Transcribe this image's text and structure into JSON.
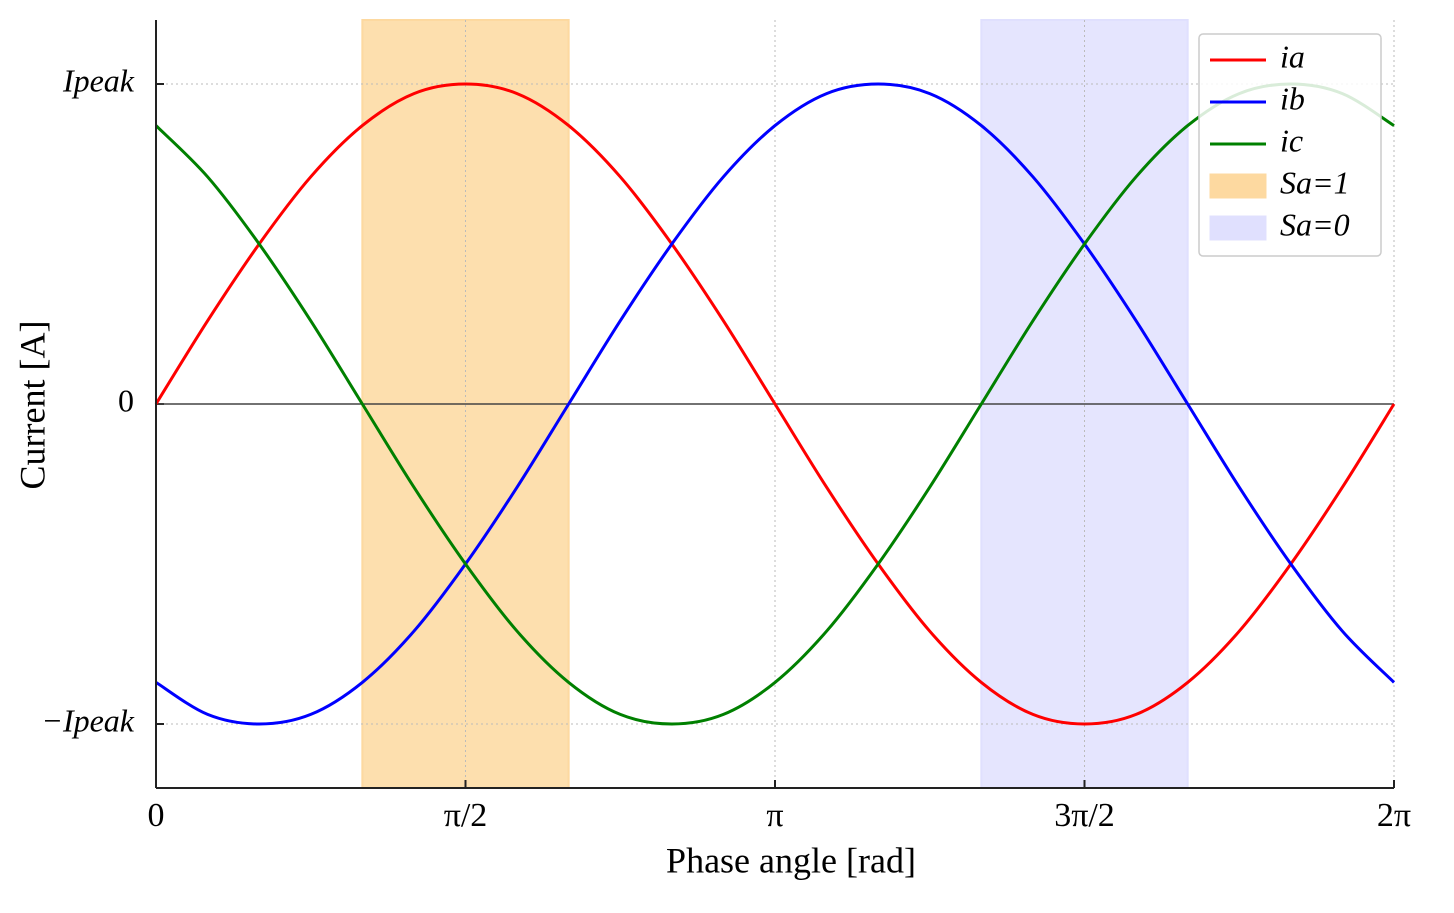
{
  "chart_data": {
    "type": "line",
    "x_label": "Phase angle [rad]",
    "y_label": "Current [A]",
    "x": [
      0,
      0.2618,
      0.5236,
      0.7854,
      1.0472,
      1.309,
      1.5708,
      1.8326,
      2.0944,
      2.3562,
      2.618,
      2.8798,
      3.1416,
      3.4034,
      3.6652,
      3.927,
      4.1888,
      4.4506,
      4.7124,
      4.9742,
      5.236,
      5.4978,
      5.7596,
      6.0214,
      6.2832
    ],
    "series": [
      {
        "name": "ia",
        "color": "#ff0000",
        "values": [
          0,
          0.26,
          0.5,
          0.71,
          0.87,
          0.97,
          1,
          0.97,
          0.87,
          0.71,
          0.5,
          0.26,
          0,
          -0.26,
          -0.5,
          -0.71,
          -0.87,
          -0.97,
          -1,
          -0.97,
          -0.87,
          -0.71,
          -0.5,
          -0.26,
          0
        ]
      },
      {
        "name": "ib",
        "color": "#0000ff",
        "values": [
          -0.87,
          -0.97,
          -1,
          -0.97,
          -0.87,
          -0.71,
          -0.5,
          -0.26,
          0,
          0.26,
          0.5,
          0.71,
          0.87,
          0.97,
          1,
          0.97,
          0.87,
          0.71,
          0.5,
          0.26,
          0,
          -0.26,
          -0.5,
          -0.71,
          -0.87
        ]
      },
      {
        "name": "ic",
        "color": "#008000",
        "values": [
          0.87,
          0.71,
          0.5,
          0.26,
          0,
          -0.26,
          -0.5,
          -0.71,
          -0.87,
          -0.97,
          -1,
          -0.97,
          -0.87,
          -0.71,
          -0.5,
          -0.26,
          0,
          0.26,
          0.5,
          0.71,
          0.87,
          0.97,
          1,
          0.97,
          0.87
        ]
      }
    ],
    "spans": [
      {
        "name": "Sa=1",
        "color": "#fdd9a0",
        "x": [
          1.0472,
          2.0944
        ]
      },
      {
        "name": "Sa=0",
        "color": "#e0e0fe",
        "x": [
          4.1888,
          5.236
        ]
      }
    ],
    "hline": 0,
    "xlim": [
      0,
      6.2832
    ],
    "ylim": [
      -1.2,
      1.2
    ],
    "xticks": [
      0,
      {
        "value": 1.5708,
        "label": "π/2"
      },
      {
        "value": 3.1416,
        "label": "π"
      },
      {
        "value": 4.7124,
        "label": "3π/2"
      },
      {
        "value": 6.2832,
        "label": "2π"
      }
    ],
    "yticks": [
      {
        "value": -1,
        "label": "−Ipeak"
      },
      0,
      {
        "value": 1,
        "label": "Ipeak"
      }
    ],
    "grid": true,
    "legend": "upper right"
  }
}
